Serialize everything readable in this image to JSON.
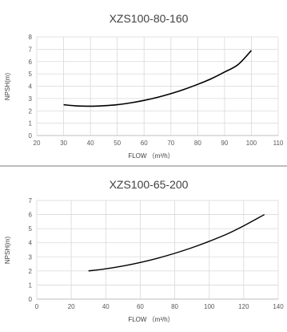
{
  "chart_data": [
    {
      "type": "line",
      "title": "XZS100-80-160",
      "xlabel": "FLOW （m³/h）",
      "ylabel": "NPSH(m)",
      "xlim": [
        20,
        110
      ],
      "ylim": [
        0,
        8
      ],
      "xticks": [
        20,
        30,
        40,
        50,
        60,
        70,
        80,
        90,
        100,
        110
      ],
      "yticks": [
        0,
        1,
        2,
        3,
        4,
        5,
        6,
        7,
        8
      ],
      "grid": true,
      "color": "#000000",
      "series": [
        {
          "x": [
            30,
            35,
            40,
            45,
            50,
            55,
            60,
            65,
            70,
            75,
            80,
            85,
            90,
            95,
            100
          ],
          "y": [
            2.5,
            2.4,
            2.38,
            2.42,
            2.5,
            2.65,
            2.85,
            3.1,
            3.4,
            3.75,
            4.15,
            4.6,
            5.15,
            5.75,
            6.9
          ]
        }
      ]
    },
    {
      "type": "line",
      "title": "XZS100-65-200",
      "xlabel": "FLOW （m³/h）",
      "ylabel": "NPSH(m)",
      "xlim": [
        0,
        140
      ],
      "ylim": [
        0,
        7
      ],
      "xticks": [
        0,
        20,
        40,
        60,
        80,
        100,
        120,
        140
      ],
      "yticks": [
        0,
        1,
        2,
        3,
        4,
        5,
        6,
        7
      ],
      "grid": true,
      "color": "#000000",
      "series": [
        {
          "x": [
            30,
            40,
            50,
            60,
            70,
            80,
            90,
            100,
            110,
            120,
            132
          ],
          "y": [
            2.0,
            2.15,
            2.35,
            2.6,
            2.9,
            3.25,
            3.65,
            4.1,
            4.6,
            5.2,
            6.0
          ]
        }
      ]
    }
  ]
}
